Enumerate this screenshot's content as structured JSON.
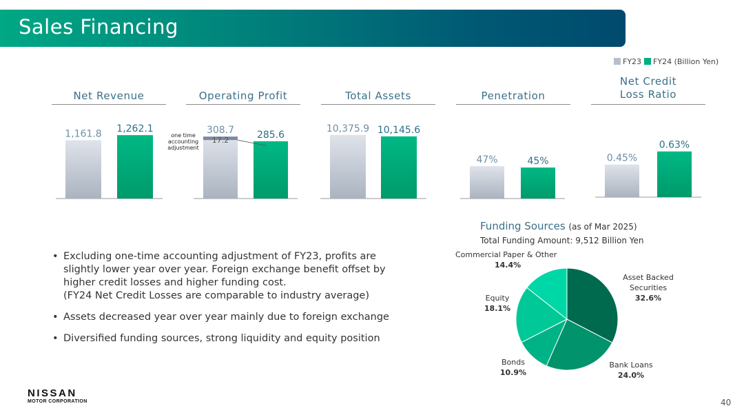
{
  "header": {
    "title": "Sales Financing"
  },
  "legend": {
    "fy23_label": "FY23",
    "fy24_label": "FY24 (Billion Yen)",
    "fy23_color": "#b7bfcb",
    "fy24_color": "#00b07d"
  },
  "chart_data": [
    {
      "type": "bar",
      "title": "Net Revenue",
      "categories": [
        "FY23",
        "FY24"
      ],
      "values": [
        1161.8,
        1262.1
      ],
      "labels": [
        "1,161.8",
        "1,262.1"
      ]
    },
    {
      "type": "bar",
      "title": "Operating Profit",
      "categories": [
        "FY23",
        "FY24"
      ],
      "values": [
        308.7,
        285.6
      ],
      "labels": [
        "308.7",
        "285.6"
      ],
      "annotation": {
        "value": 17.2,
        "label": "17.2",
        "text": "one time accounting adjustment"
      }
    },
    {
      "type": "bar",
      "title": "Total Assets",
      "categories": [
        "FY23",
        "FY24"
      ],
      "values": [
        10375.9,
        10145.6
      ],
      "labels": [
        "10,375.9",
        "10,145.6"
      ]
    },
    {
      "type": "bar",
      "title": "Penetration",
      "categories": [
        "FY23",
        "FY24"
      ],
      "values": [
        47,
        45
      ],
      "labels": [
        "47%",
        "45%"
      ]
    },
    {
      "type": "bar",
      "title": "Net Credit Loss Ratio",
      "categories": [
        "FY23",
        "FY24"
      ],
      "values": [
        0.45,
        0.63
      ],
      "labels": [
        "0.45%",
        "0.63%"
      ]
    },
    {
      "type": "pie",
      "title": "Funding Sources",
      "subtitle": "(as of Mar 2025)",
      "slices": [
        {
          "name": "Asset Backed Securities",
          "value": 32.6,
          "label": "32.6%",
          "color": "#006a4f"
        },
        {
          "name": "Bank Loans",
          "value": 24.0,
          "label": "24.0%",
          "color": "#00936c"
        },
        {
          "name": "Bonds",
          "value": 10.9,
          "label": "10.9%",
          "color": "#00b386"
        },
        {
          "name": "Equity",
          "value": 18.1,
          "label": "18.1%",
          "color": "#00c896"
        },
        {
          "name": "Commercial Paper & Other",
          "value": 14.4,
          "label": "14.4%",
          "color": "#00d7a7"
        }
      ]
    }
  ],
  "funding": {
    "title": "Funding Sources",
    "asof": "(as of Mar 2025)",
    "total": "Total Funding Amount: 9,512 Billion Yen",
    "labels": {
      "abs": "Asset Backed Securities",
      "bank": "Bank Loans",
      "bonds": "Bonds",
      "equity": "Equity",
      "cp": "Commercial Paper & Other"
    }
  },
  "op_annotation": {
    "line1": "one time",
    "line2": "accounting",
    "line3": "adjustment"
  },
  "chart_titles": {
    "net_revenue": "Net Revenue",
    "operating_profit": "Operating Profit",
    "total_assets": "Total Assets",
    "penetration": "Penetration",
    "ncl_line1": "Net Credit",
    "ncl_line2": "Loss Ratio"
  },
  "bullets": [
    "Excluding one-time accounting adjustment of FY23, profits are slightly lower year over year. Foreign exchange benefit offset by higher credit losses and higher funding cost.",
    "(FY24 Net Credit Losses are comparable to industry average)",
    "Assets decreased year over year mainly due to foreign exchange",
    "Diversified funding sources, strong liquidity and equity position"
  ],
  "footer": {
    "logo_main": "NISSAN",
    "logo_sub": "MOTOR CORPORATION",
    "page": "40"
  }
}
